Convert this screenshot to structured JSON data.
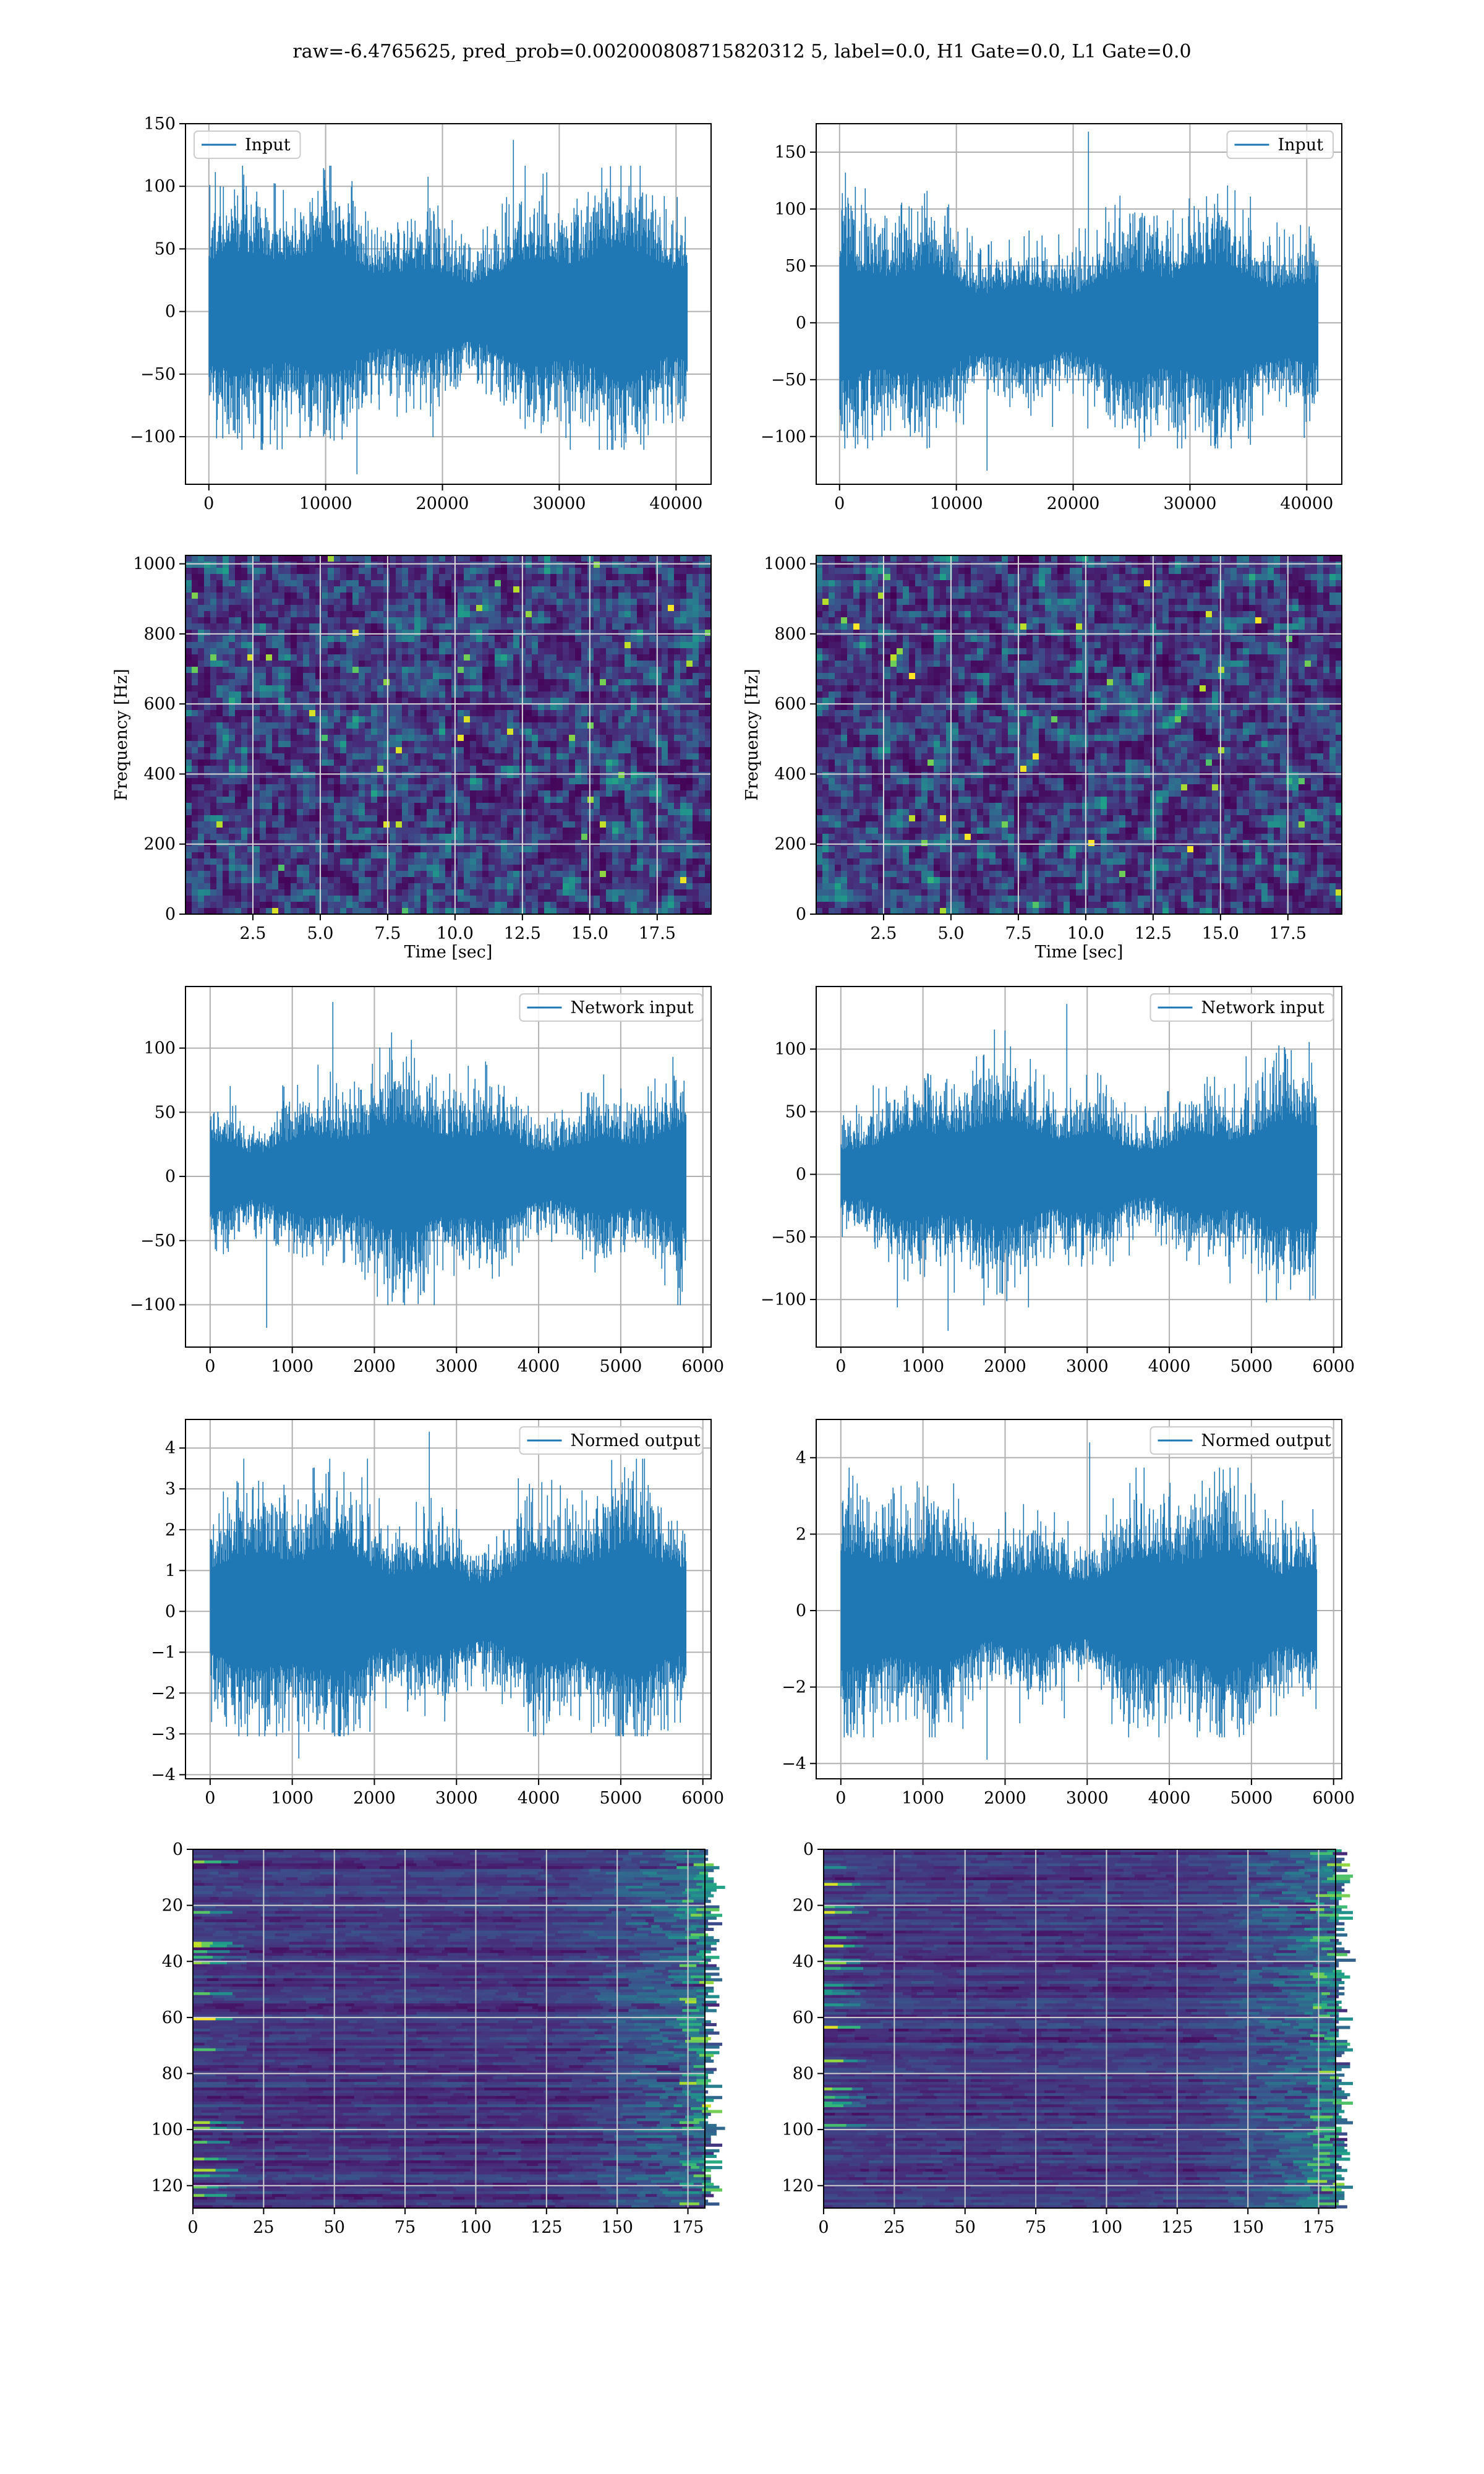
{
  "figure": {
    "title": "raw=-6.4765625, pred_prob=0.002000808715820312 5, label=0.0, H1 Gate=0.0, L1 Gate=0.0"
  },
  "chart_data": [
    {
      "id": "p1",
      "type": "line",
      "series": [
        {
          "name": "Input",
          "n": 40960,
          "amp": 28,
          "max": 137,
          "min": -130
        }
      ],
      "xlim": [
        -2000,
        43000
      ],
      "ylim": [
        -138,
        150
      ],
      "xticks": [
        0,
        10000,
        20000,
        30000,
        40000
      ],
      "xtick_labels": [
        "0",
        "10000",
        "20000",
        "30000",
        "40000"
      ],
      "yticks": [
        -100,
        -50,
        0,
        50,
        100,
        150
      ],
      "ytick_labels": [
        "−100",
        "−50",
        "0",
        "50",
        "100",
        "150"
      ],
      "legend": "upper left",
      "xlabel": "",
      "ylabel": "",
      "grid": true
    },
    {
      "id": "p2",
      "type": "line",
      "series": [
        {
          "name": "Input",
          "n": 40960,
          "amp": 28,
          "max": 168,
          "min": -130
        }
      ],
      "xlim": [
        -2000,
        43000
      ],
      "ylim": [
        -142,
        175
      ],
      "xticks": [
        0,
        10000,
        20000,
        30000,
        40000
      ],
      "xtick_labels": [
        "0",
        "10000",
        "20000",
        "30000",
        "40000"
      ],
      "yticks": [
        -100,
        -50,
        0,
        50,
        100,
        150
      ],
      "ytick_labels": [
        "−100",
        "−50",
        "0",
        "50",
        "100",
        "150"
      ],
      "legend": "upper right",
      "xlabel": "",
      "ylabel": "",
      "grid": true
    },
    {
      "id": "p3",
      "type": "heatmap",
      "kind": "spectrogram",
      "xlim": [
        0,
        19.5
      ],
      "ylim": [
        0,
        1024
      ],
      "xticks": [
        2.5,
        5.0,
        7.5,
        10.0,
        12.5,
        15.0,
        17.5
      ],
      "xtick_labels": [
        "2.5",
        "5.0",
        "7.5",
        "10.0",
        "12.5",
        "15.0",
        "17.5"
      ],
      "yticks": [
        0,
        200,
        400,
        600,
        800,
        1000
      ],
      "ytick_labels": [
        "0",
        "200",
        "400",
        "600",
        "800",
        "1000"
      ],
      "xlabel": "Time [sec]",
      "ylabel": "Frequency [Hz]",
      "grid": true,
      "colormap": "viridis"
    },
    {
      "id": "p4",
      "type": "heatmap",
      "kind": "spectrogram",
      "xlim": [
        0,
        19.5
      ],
      "ylim": [
        0,
        1024
      ],
      "xticks": [
        2.5,
        5.0,
        7.5,
        10.0,
        12.5,
        15.0,
        17.5
      ],
      "xtick_labels": [
        "2.5",
        "5.0",
        "7.5",
        "10.0",
        "12.5",
        "15.0",
        "17.5"
      ],
      "yticks": [
        0,
        200,
        400,
        600,
        800,
        1000
      ],
      "ytick_labels": [
        "0",
        "200",
        "400",
        "600",
        "800",
        "1000"
      ],
      "xlabel": "Time [sec]",
      "ylabel": "Frequency [Hz]",
      "grid": true,
      "colormap": "viridis"
    },
    {
      "id": "p5",
      "type": "line",
      "series": [
        {
          "name": "Network input",
          "n": 5800,
          "amp": 23,
          "max": 136,
          "min": -118
        }
      ],
      "xlim": [
        -300,
        6100
      ],
      "ylim": [
        -133,
        148
      ],
      "xticks": [
        0,
        1000,
        2000,
        3000,
        4000,
        5000,
        6000
      ],
      "xtick_labels": [
        "0",
        "1000",
        "2000",
        "3000",
        "4000",
        "5000",
        "6000"
      ],
      "yticks": [
        -100,
        -50,
        0,
        50,
        100
      ],
      "ytick_labels": [
        "−100",
        "−50",
        "0",
        "50",
        "100"
      ],
      "legend": "upper right",
      "xlabel": "",
      "ylabel": "",
      "grid": true
    },
    {
      "id": "p6",
      "type": "line",
      "series": [
        {
          "name": "Network input",
          "n": 5800,
          "amp": 23,
          "max": 136,
          "min": -125
        }
      ],
      "xlim": [
        -300,
        6100
      ],
      "ylim": [
        -138,
        150
      ],
      "xticks": [
        0,
        1000,
        2000,
        3000,
        4000,
        5000,
        6000
      ],
      "xtick_labels": [
        "0",
        "1000",
        "2000",
        "3000",
        "4000",
        "5000",
        "6000"
      ],
      "yticks": [
        -100,
        -50,
        0,
        50,
        100
      ],
      "ytick_labels": [
        "−100",
        "−50",
        "0",
        "50",
        "100"
      ],
      "legend": "upper right",
      "xlabel": "",
      "ylabel": "",
      "grid": true
    },
    {
      "id": "p7",
      "type": "line",
      "series": [
        {
          "name": "Normed output",
          "n": 5800,
          "amp": 0.85,
          "max": 4.4,
          "min": -3.6
        }
      ],
      "xlim": [
        -300,
        6100
      ],
      "ylim": [
        -4.1,
        4.7
      ],
      "xticks": [
        0,
        1000,
        2000,
        3000,
        4000,
        5000,
        6000
      ],
      "xtick_labels": [
        "0",
        "1000",
        "2000",
        "3000",
        "4000",
        "5000",
        "6000"
      ],
      "yticks": [
        -4,
        -3,
        -2,
        -1,
        0,
        1,
        2,
        3,
        4
      ],
      "ytick_labels": [
        "−4",
        "−3",
        "−2",
        "−1",
        "0",
        "1",
        "2",
        "3",
        "4"
      ],
      "legend": "upper right",
      "xlabel": "",
      "ylabel": "",
      "grid": true
    },
    {
      "id": "p8",
      "type": "line",
      "series": [
        {
          "name": "Normed output",
          "n": 5800,
          "amp": 0.85,
          "max": 4.4,
          "min": -3.9
        }
      ],
      "xlim": [
        -300,
        6100
      ],
      "ylim": [
        -4.4,
        5.0
      ],
      "xticks": [
        0,
        1000,
        2000,
        3000,
        4000,
        5000,
        6000
      ],
      "xtick_labels": [
        "0",
        "1000",
        "2000",
        "3000",
        "4000",
        "5000",
        "6000"
      ],
      "yticks": [
        -4,
        -2,
        0,
        2,
        4
      ],
      "ytick_labels": [
        "−4",
        "−2",
        "0",
        "2",
        "4"
      ],
      "legend": "upper right",
      "xlabel": "",
      "ylabel": "",
      "grid": true
    },
    {
      "id": "p9",
      "type": "heatmap",
      "kind": "feature-map",
      "xlim": [
        0,
        181
      ],
      "ylim": [
        128,
        0
      ],
      "xticks": [
        0,
        25,
        50,
        75,
        100,
        125,
        150,
        175
      ],
      "xtick_labels": [
        "0",
        "25",
        "50",
        "75",
        "100",
        "125",
        "150",
        "175"
      ],
      "yticks": [
        0,
        20,
        40,
        60,
        80,
        100,
        120
      ],
      "ytick_labels": [
        "0",
        "20",
        "40",
        "60",
        "80",
        "100",
        "120"
      ],
      "xlabel": "",
      "ylabel": "",
      "grid": true,
      "colormap": "viridis"
    },
    {
      "id": "p10",
      "type": "heatmap",
      "kind": "feature-map",
      "xlim": [
        0,
        181
      ],
      "ylim": [
        128,
        0
      ],
      "xticks": [
        0,
        25,
        50,
        75,
        100,
        125,
        150,
        175
      ],
      "xtick_labels": [
        "0",
        "25",
        "50",
        "75",
        "100",
        "125",
        "150",
        "175"
      ],
      "yticks": [
        0,
        20,
        40,
        60,
        80,
        100,
        120
      ],
      "ytick_labels": [
        "0",
        "20",
        "40",
        "60",
        "80",
        "100",
        "120"
      ],
      "xlabel": "",
      "ylabel": "",
      "grid": true,
      "colormap": "viridis"
    }
  ]
}
